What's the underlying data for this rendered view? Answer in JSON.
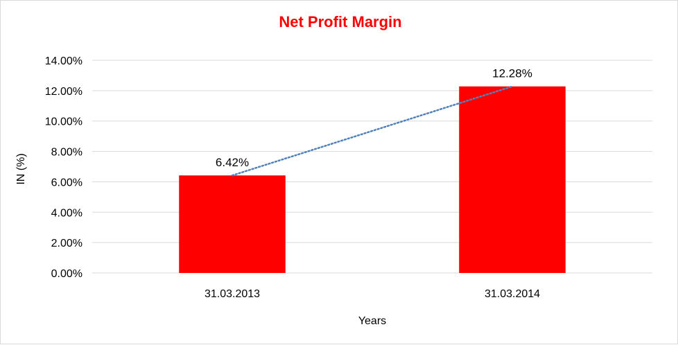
{
  "chart_data": {
    "type": "bar",
    "title": "Net Profit Margin",
    "xlabel": "Years",
    "ylabel": "IN (%)",
    "categories": [
      "31.03.2013",
      "31.03.2014"
    ],
    "values": [
      6.42,
      12.28
    ],
    "data_labels": [
      "6.42%",
      "12.28%"
    ],
    "ylim": [
      0,
      14
    ],
    "yticks": [
      0,
      2,
      4,
      6,
      8,
      10,
      12,
      14
    ],
    "ytick_labels": [
      "0.00%",
      "2.00%",
      "4.00%",
      "6.00%",
      "8.00%",
      "10.00%",
      "12.00%",
      "14.00%"
    ],
    "grid": true,
    "trendline": "linear",
    "colors": {
      "bar": "#ff0000",
      "title": "#ff0000",
      "trendline": "#4f81bd",
      "grid": "#d9d9d9"
    }
  }
}
